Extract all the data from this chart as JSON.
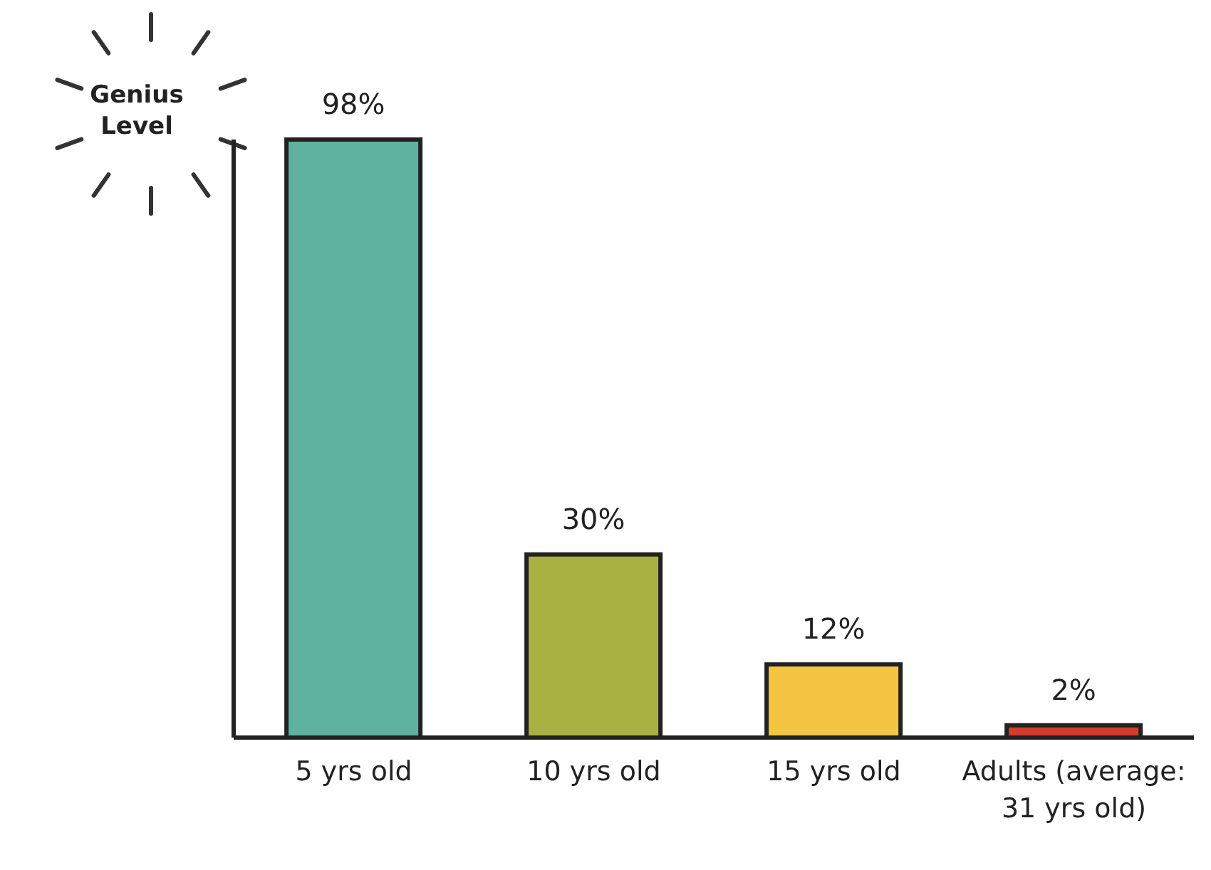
{
  "chart_data": {
    "type": "bar",
    "ylabel": "Genius Level",
    "categories": [
      "5 yrs old",
      "10 yrs old",
      "15 yrs old",
      "Adults (average: 31 yrs old)"
    ],
    "values": [
      98,
      30,
      12,
      2
    ],
    "colors": [
      "#5fb39e",
      "#a8b242",
      "#f4c542",
      "#d63b2b"
    ],
    "value_labels": [
      "98%",
      "30%",
      "12%",
      "2%"
    ],
    "grid": false,
    "legend": false
  }
}
